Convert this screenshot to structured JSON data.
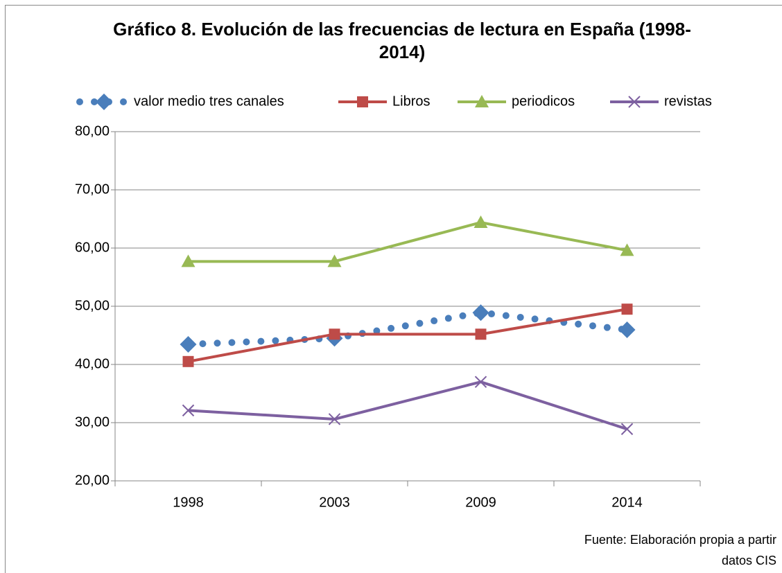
{
  "chart_data": {
    "type": "line",
    "title": "Gráfico 8. Evolución de las frecuencias de lectura en España (1998-2014)",
    "source": "Fuente: Elaboración propia a partir datos CIS",
    "categories": [
      "1998",
      "2003",
      "2009",
      "2014"
    ],
    "series": [
      {
        "name": "valor medio tres canales",
        "color": "#4a7ebb",
        "marker": "diamond",
        "line_style": "dotted",
        "values": [
          43.45,
          44.5,
          48.9,
          45.95
        ]
      },
      {
        "name": "Libros",
        "color": "#be4b48",
        "marker": "square",
        "line_style": "solid",
        "values": [
          40.5,
          45.2,
          45.2,
          49.5
        ]
      },
      {
        "name": "periodicos",
        "color": "#98b954",
        "marker": "triangle",
        "line_style": "solid",
        "values": [
          57.7,
          57.7,
          64.4,
          59.6
        ]
      },
      {
        "name": "revistas",
        "color": "#7d60a0",
        "marker": "x",
        "line_style": "solid",
        "values": [
          32.1,
          30.6,
          37.0,
          28.9
        ]
      }
    ],
    "ylim": [
      20,
      80
    ],
    "yticks": [
      {
        "value": 20,
        "label": "20,00"
      },
      {
        "value": 30,
        "label": "30,00"
      },
      {
        "value": 40,
        "label": "40,00"
      },
      {
        "value": 50,
        "label": "50,00"
      },
      {
        "value": 60,
        "label": "60,00"
      },
      {
        "value": 70,
        "label": "70,00"
      },
      {
        "value": 80,
        "label": "80,00"
      }
    ],
    "grid": true,
    "legend": "top"
  }
}
